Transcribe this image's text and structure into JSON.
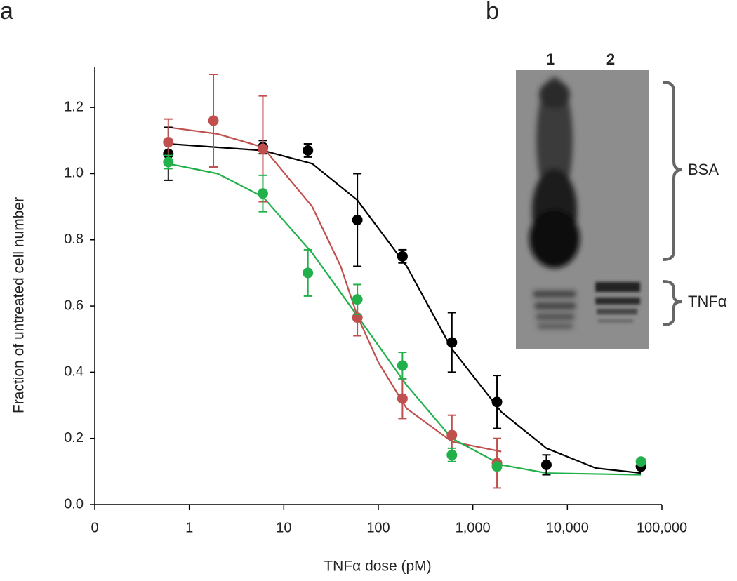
{
  "chart_data": {
    "type": "scatter",
    "panel_label": "a",
    "x_label": "TNFα dose (pM)",
    "y_label": "Fraction of untreated cell number",
    "xscale": "log",
    "xlim": [
      0.1,
      100000
    ],
    "xticks": [
      {
        "value": 0.1,
        "label": "0"
      },
      1,
      10,
      100,
      {
        "value": 1000,
        "label": "1,000"
      },
      {
        "value": 10000,
        "label": "10,000"
      },
      {
        "value": 100000,
        "label": "100,000"
      }
    ],
    "ylim": [
      0,
      1.3
    ],
    "yticks": [
      {
        "value": 0,
        "label": "0.0"
      },
      0.2,
      0.4,
      0.6,
      0.8,
      {
        "value": 1,
        "label": "1.0"
      },
      1.2
    ],
    "series": [
      {
        "color": "#000000",
        "x": [
          0.6,
          6,
          18,
          60,
          180,
          600,
          1800,
          6000,
          60000
        ],
        "values": [
          1.06,
          1.08,
          1.07,
          0.86,
          0.75,
          0.49,
          0.31,
          0.12,
          0.115
        ],
        "errors": [
          0.08,
          0.02,
          0.02,
          0.14,
          0.02,
          0.09,
          0.08,
          0.03,
          0.01
        ],
        "fit": {
          "x": [
            0.6,
            6,
            20,
            60,
            200,
            600,
            2000,
            6000,
            20000,
            60000
          ],
          "values": [
            1.09,
            1.07,
            1.03,
            0.92,
            0.72,
            0.47,
            0.28,
            0.17,
            0.11,
            0.095
          ]
        }
      },
      {
        "color": "#c0504d",
        "x": [
          0.6,
          1.8,
          6,
          60,
          180,
          600,
          1800
        ],
        "values": [
          1.095,
          1.16,
          1.075,
          0.565,
          0.32,
          0.21,
          0.125
        ],
        "errors": [
          0.07,
          0.14,
          0.16,
          0.055,
          0.06,
          0.06,
          0.075
        ],
        "fit": {
          "x": [
            0.6,
            2,
            6,
            20,
            40,
            60,
            100,
            200,
            600,
            2000
          ],
          "values": [
            1.14,
            1.12,
            1.08,
            0.9,
            0.72,
            0.57,
            0.43,
            0.29,
            0.19,
            0.16
          ]
        }
      },
      {
        "color": "#22b04b",
        "x": [
          0.6,
          6,
          18,
          60,
          180,
          600,
          1800,
          60000
        ],
        "values": [
          1.035,
          0.94,
          0.7,
          0.62,
          0.42,
          0.15,
          0.115,
          0.13
        ],
        "errors": [
          0.02,
          0.055,
          0.07,
          0.045,
          0.04,
          0.02,
          0.01,
          0.01
        ],
        "fit": {
          "x": [
            0.6,
            2,
            6,
            20,
            60,
            200,
            600,
            2000,
            6000,
            60000
          ],
          "values": [
            1.03,
            1.0,
            0.93,
            0.76,
            0.57,
            0.36,
            0.2,
            0.12,
            0.095,
            0.09
          ]
        }
      }
    ]
  },
  "gel": {
    "panel_label": "b",
    "lanes": [
      "1",
      "2"
    ],
    "bands": [
      "BSA",
      "TNFα"
    ]
  }
}
